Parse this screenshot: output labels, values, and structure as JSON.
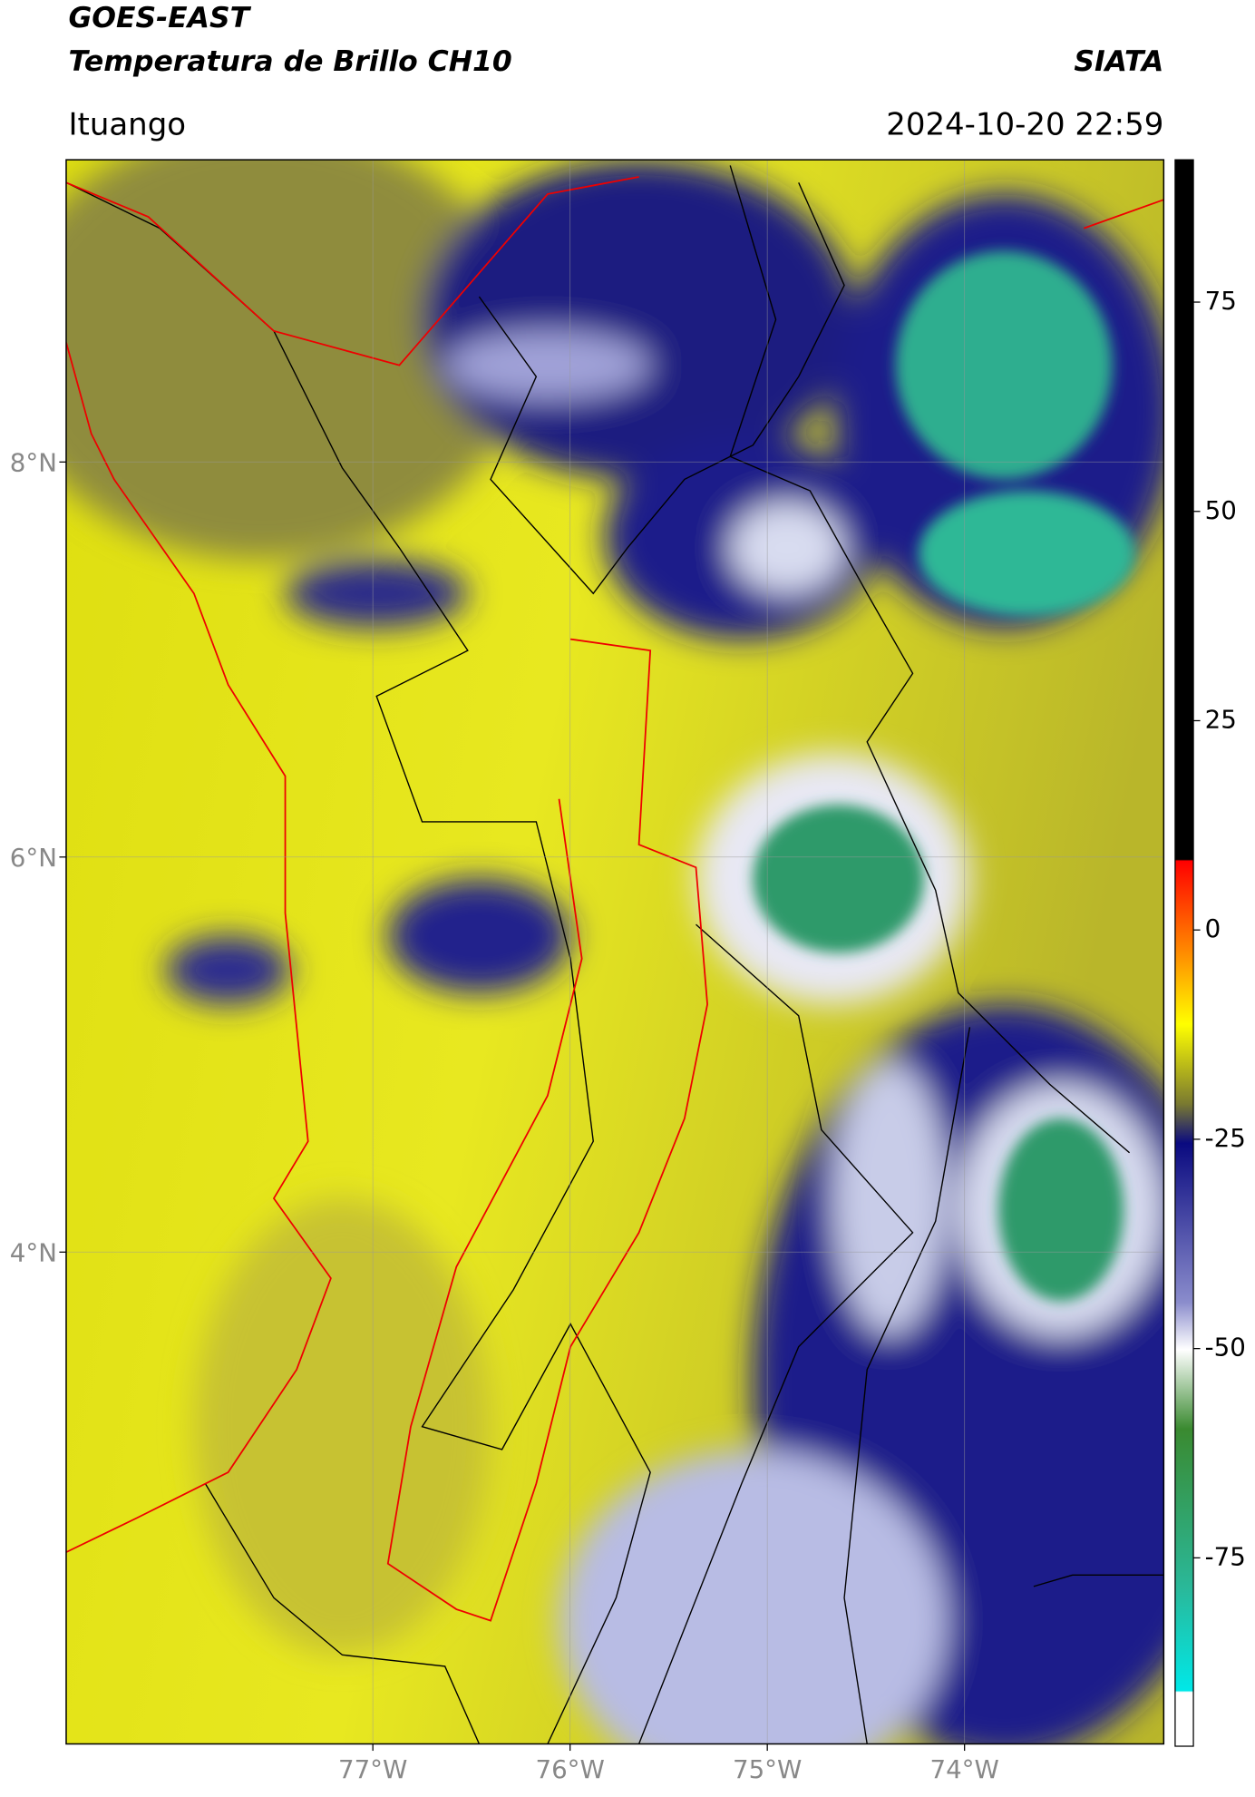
{
  "map": {
    "title_line1": "GOES-EAST",
    "title_line2": "Temperatura de Brillo CH10",
    "brand": "SIATA",
    "location": "Ituango",
    "datetime": "2024-10-20 22:59",
    "xlim": [
      -78.555,
      -72.99
    ],
    "ylim": [
      1.51,
      9.53
    ],
    "xticks": [
      {
        "value": -77,
        "label": "77°W"
      },
      {
        "value": -76,
        "label": "76°W"
      },
      {
        "value": -75,
        "label": "75°W"
      },
      {
        "value": -74,
        "label": "74°W"
      }
    ],
    "yticks": [
      {
        "value": 8,
        "label": "8°N"
      },
      {
        "value": 6,
        "label": "6°N"
      },
      {
        "value": 4,
        "label": "4°N"
      }
    ],
    "colorbar": {
      "range": [
        -97.5,
        92
      ],
      "ticks": [
        75,
        50,
        25,
        0,
        -25,
        -50,
        -75
      ]
    }
  }
}
